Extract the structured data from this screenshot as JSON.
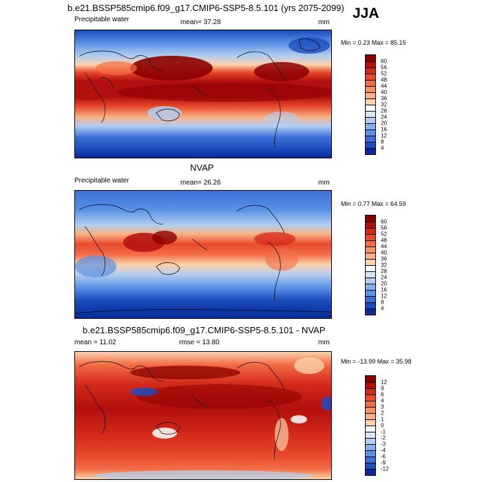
{
  "season": "JJA",
  "panels": [
    {
      "title": "b.e21.BSSP585cmip6.f09_g17.CMIP6-SSP5-8.5.101 (yrs 2075-2099)",
      "left_label": "Precipitable water",
      "center_label": "mean=  37.28",
      "right_label": "mm",
      "minmax": "Min =   0.23 Max =  85.15",
      "colorbar_labels": [
        "60",
        "56",
        "52",
        "48",
        "44",
        "40",
        "36",
        "32",
        "28",
        "24",
        "20",
        "16",
        "12",
        "8",
        "4"
      ],
      "colorbar_colors": [
        "#8b0000",
        "#b30f0f",
        "#d42a1a",
        "#e84a2a",
        "#f26d45",
        "#f7915f",
        "#f9b083",
        "#fbd2ad",
        "#ffffff",
        "#d7e6f7",
        "#b2cdf0",
        "#86b1ec",
        "#5a92e6",
        "#3a70d8",
        "#1c4cbe",
        "#082a9a"
      ]
    },
    {
      "title": "NVAP",
      "left_label": "Precipitable water",
      "center_label": "mean=  26.26",
      "right_label": "mm",
      "minmax": "Min =   0.77 Max =  64.59",
      "colorbar_labels": [
        "60",
        "56",
        "52",
        "48",
        "44",
        "40",
        "36",
        "32",
        "28",
        "24",
        "20",
        "16",
        "12",
        "8",
        "4"
      ],
      "colorbar_colors": [
        "#8b0000",
        "#b30f0f",
        "#d42a1a",
        "#e84a2a",
        "#f26d45",
        "#f7915f",
        "#f9b083",
        "#fbd2ad",
        "#ffffff",
        "#d7e6f7",
        "#b2cdf0",
        "#86b1ec",
        "#5a92e6",
        "#3a70d8",
        "#1c4cbe",
        "#082a9a"
      ]
    },
    {
      "title": "b.e21.BSSP585cmip6.f09_g17.CMIP6-SSP5-8.5.101 - NVAP",
      "left_label": "mean =  11.02",
      "center_label": "rmse =  13.80",
      "right_label": "mm",
      "minmax": "Min = -13.99 Max =  35.98",
      "colorbar_labels": [
        "12",
        "9",
        "6",
        "4",
        "3",
        "2",
        "1",
        "0",
        "-1",
        "-2",
        "-3",
        "-4",
        "-6",
        "-9",
        "-12"
      ],
      "colorbar_colors": [
        "#8b0000",
        "#b30f0f",
        "#d42a1a",
        "#e84a2a",
        "#f26d45",
        "#f7915f",
        "#f9b083",
        "#fbd2ad",
        "#ffffff",
        "#d7e6f7",
        "#b2cdf0",
        "#86b1ec",
        "#5a92e6",
        "#3a70d8",
        "#1c4cbe",
        "#082a9a"
      ]
    }
  ]
}
